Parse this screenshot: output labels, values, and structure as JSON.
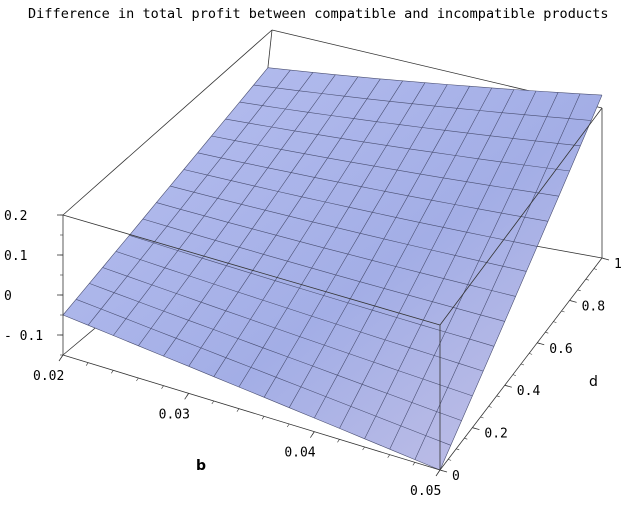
{
  "chart_data": {
    "type": "surface3d",
    "title": "Difference in total profit between compatible and incompatible products",
    "xlabel": "b",
    "ylabel": "d",
    "zlabel": "",
    "x_ticks": [
      "0.02",
      "0.03",
      "0.04",
      "0.05"
    ],
    "y_ticks": [
      "0",
      "0.2",
      "0.4",
      "0.6",
      "0.8",
      "1"
    ],
    "z_ticks": [
      "0.2",
      "0.1",
      "0",
      "- 0.1"
    ],
    "xlim": [
      0.02,
      0.05
    ],
    "ylim": [
      0,
      1
    ],
    "zlim": [
      -0.15,
      0.2
    ],
    "grid_n": 15,
    "corners": {
      "b0.02_d0": -0.05,
      "b0.05_d0": -0.15,
      "b0.05_d1": 0.2,
      "b0.02_d1": 0.12
    },
    "surface_color": "#9fa9e6",
    "mesh_color": "#4a4f73"
  }
}
